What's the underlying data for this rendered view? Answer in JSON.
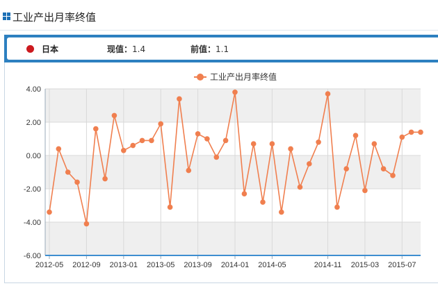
{
  "header": {
    "title": "工业产出月率终值"
  },
  "info": {
    "country": "日本",
    "current_label": "现值：",
    "current_value": "1.4",
    "previous_label": "前值：",
    "previous_value": "1.1"
  },
  "colors": {
    "accent": "#2d80c0",
    "series": "#f07f4f",
    "flag": "#cc1a1f",
    "band": "#efefef"
  },
  "chart_data": {
    "type": "line",
    "legend_position": "top-center",
    "grid": true,
    "ylim": [
      -6,
      4
    ],
    "yticks": [
      "4.00",
      "2.00",
      "0.00",
      "-2.00",
      "-4.00",
      "-6.00"
    ],
    "xtick_labels": [
      "2012-05",
      "2012-09",
      "2013-01",
      "2013-05",
      "2013-09",
      "2014-01",
      "2014-05",
      "2014-11",
      "2015-03",
      "2015-07"
    ],
    "series": [
      {
        "name": "工业产出月率终值",
        "x": [
          "2012-05",
          "2012-06",
          "2012-07",
          "2012-08",
          "2012-09",
          "2012-10",
          "2012-11",
          "2012-12",
          "2013-01",
          "2013-02",
          "2013-03",
          "2013-04",
          "2013-05",
          "2013-06",
          "2013-07",
          "2013-08",
          "2013-09",
          "2013-10",
          "2013-11",
          "2013-12",
          "2014-01",
          "2014-02",
          "2014-03",
          "2014-04",
          "2014-05",
          "2014-06",
          "2014-07",
          "2014-08",
          "2014-09",
          "2014-10",
          "2014-11",
          "2014-12",
          "2015-01",
          "2015-02",
          "2015-03",
          "2015-04",
          "2015-05",
          "2015-06",
          "2015-07",
          "2015-08",
          "2015-09"
        ],
        "values": [
          -3.4,
          0.4,
          -1.0,
          -1.6,
          -4.1,
          1.6,
          -1.4,
          2.4,
          0.3,
          0.6,
          0.9,
          0.9,
          1.9,
          -3.1,
          3.4,
          -0.9,
          1.3,
          1.0,
          -0.1,
          0.9,
          3.8,
          -2.3,
          0.7,
          -2.8,
          0.7,
          -3.4,
          0.4,
          -1.9,
          -0.5,
          0.8,
          3.7,
          -3.1,
          -0.8,
          1.2,
          -2.1,
          0.7,
          -0.8,
          -1.2,
          1.1,
          1.4,
          1.4
        ]
      }
    ]
  }
}
